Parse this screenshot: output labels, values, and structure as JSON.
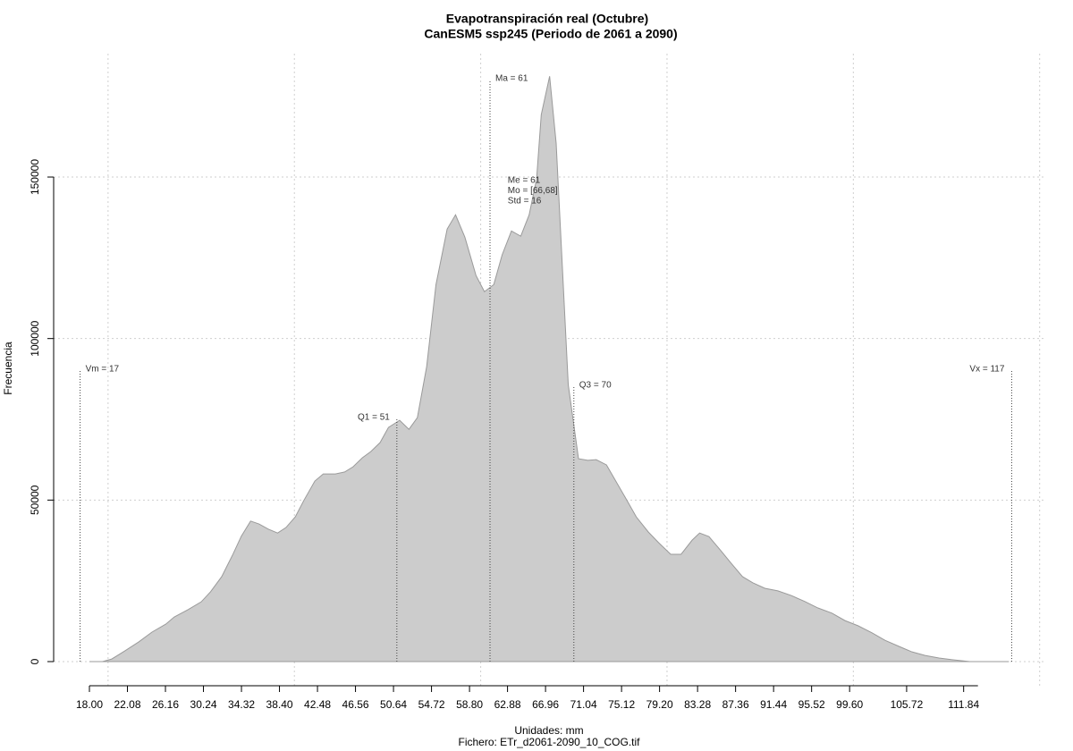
{
  "chart_data": {
    "type": "area",
    "title": "Evapotranspiración real (Octubre)",
    "subtitle": "CanESM5 ssp245 (Periodo de 2061 a 2090)",
    "x_label": "Unidades: mm",
    "caption": "Fichero: ETr_d2061-2090_10_COG.tif",
    "y_label": "Frecuencia",
    "color": "#cccccc",
    "x": [
      18.0,
      19.4,
      20.4,
      21.8,
      23.3,
      24.7,
      26.2,
      27.1,
      28.6,
      30.0,
      31.0,
      32.2,
      33.4,
      34.3,
      35.3,
      36.2,
      37.2,
      38.2,
      39.1,
      40.1,
      41.0,
      42.2,
      43.1,
      44.4,
      45.4,
      46.3,
      47.3,
      48.2,
      49.2,
      50.1,
      51.3,
      52.3,
      53.2,
      54.2,
      55.2,
      56.4,
      57.3,
      58.3,
      59.5,
      60.4,
      61.4,
      62.3,
      63.3,
      64.3,
      65.2,
      66.0,
      66.5,
      67.4,
      68.1,
      69.4,
      70.5,
      71.5,
      72.4,
      73.5,
      74.6,
      75.6,
      76.7,
      78.0,
      79.1,
      80.4,
      81.5,
      82.7,
      83.5,
      84.5,
      85.7,
      86.9,
      88.1,
      89.2,
      90.5,
      91.9,
      93.3,
      94.8,
      96.2,
      97.7,
      99.1,
      100.5,
      102.0,
      103.4,
      104.9,
      106.3,
      107.7,
      109.2,
      110.6,
      112.5,
      114.0,
      116.7
    ],
    "values": [
      0,
      0,
      800,
      3300,
      6100,
      9100,
      11600,
      13800,
      16100,
      18500,
      21600,
      26300,
      33200,
      38800,
      43500,
      42600,
      41000,
      39800,
      41500,
      44800,
      49800,
      55900,
      58100,
      58100,
      58700,
      60300,
      63100,
      65000,
      67800,
      72500,
      74700,
      71900,
      75500,
      91300,
      116700,
      133900,
      138300,
      131400,
      119500,
      114500,
      116700,
      125900,
      133300,
      131700,
      138300,
      149400,
      169300,
      181200,
      160500,
      85700,
      62800,
      62300,
      62500,
      60900,
      55400,
      50400,
      44800,
      40100,
      36800,
      33200,
      33200,
      37600,
      39800,
      38700,
      34600,
      30400,
      26300,
      24400,
      22700,
      21900,
      20500,
      18600,
      16600,
      15000,
      12700,
      11100,
      8900,
      6600,
      4700,
      3000,
      1900,
      1100,
      600,
      0,
      0,
      0
    ],
    "xlim": [
      14.16,
      120.7
    ],
    "ylim": [
      -7750,
      188200
    ],
    "xticks": [
      {
        "value": 18,
        "label": "18.00"
      },
      22.08,
      26.16,
      30.24,
      34.32,
      {
        "value": 38.4,
        "label": "38.40"
      },
      42.48,
      46.56,
      50.64,
      54.72,
      {
        "value": 58.8,
        "label": "58.80"
      },
      62.88,
      66.96,
      71.04,
      75.12,
      {
        "value": 79.2,
        "label": "79.20"
      },
      83.28,
      87.36,
      91.44,
      95.52,
      {
        "value": 99.6,
        "label": "99.60"
      },
      105.72,
      111.84
    ],
    "xgrid": [
      20,
      40,
      60,
      80,
      100,
      120
    ],
    "yticks": [
      0,
      50000,
      100000,
      150000
    ],
    "grid": true,
    "markers": [
      {
        "label": "Vm = 17",
        "x": 17,
        "y": 90000
      },
      {
        "label": "Q1 = 51",
        "x": 51,
        "y": 75000
      },
      {
        "label": "Ma = 61",
        "x": 61,
        "y": 180000
      },
      {
        "label": "Q3 = 70",
        "x": 70,
        "y": 85000
      },
      {
        "label": "Vx = 117",
        "x": 117,
        "y": 90000
      }
    ],
    "stats": [
      "Me = 61",
      "Mo = [66,68]",
      "Std = 16"
    ]
  }
}
